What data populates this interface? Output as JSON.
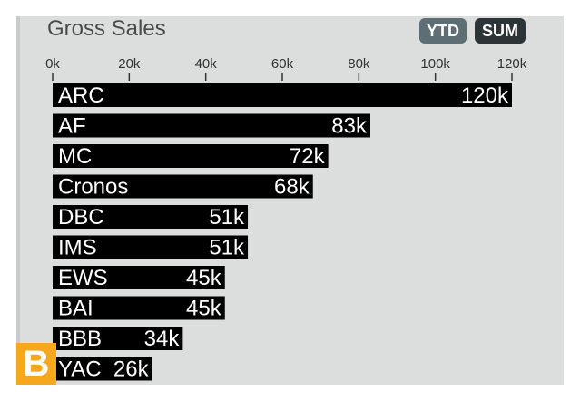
{
  "header": {
    "title": "Gross Sales",
    "ytd_label": "YTD",
    "sum_label": "SUM"
  },
  "logo_letter": "B",
  "colors": {
    "bar": "#000000",
    "panel": "#dcdedd",
    "ytd": "#5e6e75",
    "sum": "#2c3438",
    "logo": "#f6a81c"
  },
  "chart_data": {
    "type": "bar",
    "orientation": "horizontal",
    "title": "Gross Sales",
    "categories": [
      "ARC",
      "AF",
      "MC",
      "Cronos",
      "DBC",
      "IMS",
      "EWS",
      "BAI",
      "BBB",
      "YAC"
    ],
    "values": [
      120000,
      83000,
      72000,
      68000,
      51000,
      51000,
      45000,
      45000,
      34000,
      26000
    ],
    "value_labels": [
      "120k",
      "83k",
      "72k",
      "68k",
      "51k",
      "51k",
      "45k",
      "45k",
      "34k",
      "26k"
    ],
    "xlim": [
      0,
      120000
    ],
    "xticks": [
      0,
      20000,
      40000,
      60000,
      80000,
      100000,
      120000
    ],
    "xtick_labels": [
      "0k",
      "20k",
      "40k",
      "60k",
      "80k",
      "100k",
      "120k"
    ],
    "axis_position": "top",
    "grid": false
  }
}
